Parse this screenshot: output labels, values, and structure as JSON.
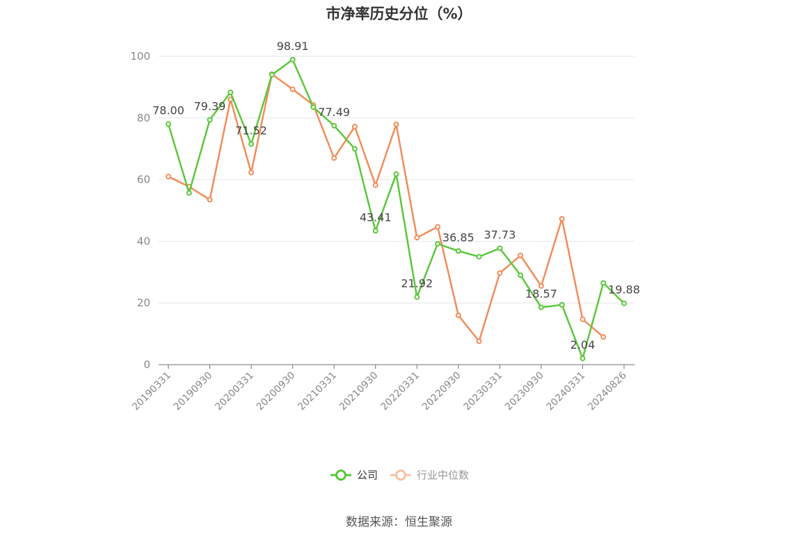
{
  "chart_data": {
    "type": "line",
    "title": "市净率历史分位（%）",
    "x": [
      "20190331",
      "20190630",
      "20190930",
      "20191231",
      "20200331",
      "20200630",
      "20200930",
      "20201231",
      "20210331",
      "20210630",
      "20210930",
      "20211231",
      "20220331",
      "20220630",
      "20220930",
      "20221231",
      "20230331",
      "20230630",
      "20230930",
      "20231231",
      "20240331",
      "20240630",
      "20240826"
    ],
    "x_tick_labels": [
      "20190331",
      "20190930",
      "20200331",
      "20200930",
      "20210331",
      "20210930",
      "20220331",
      "20220930",
      "20230331",
      "20230930",
      "20240331",
      "20240826"
    ],
    "ylim": [
      0,
      100
    ],
    "y_ticks": [
      0,
      20,
      40,
      60,
      80,
      100
    ],
    "grid": true,
    "legend_position": "bottom-center",
    "series": [
      {
        "name": "公司",
        "color": "#5ac73a",
        "values": [
          78.0,
          55.7,
          79.39,
          88.3,
          71.52,
          94.0,
          98.91,
          83.5,
          77.49,
          70.0,
          43.41,
          61.8,
          21.92,
          39.2,
          36.85,
          35.0,
          37.73,
          29.0,
          18.57,
          19.4,
          2.04,
          26.5,
          19.88
        ],
        "data_labels": [
          {
            "index": 0,
            "text": "78.00"
          },
          {
            "index": 2,
            "text": "79.39"
          },
          {
            "index": 4,
            "text": "71.52"
          },
          {
            "index": 6,
            "text": "98.91"
          },
          {
            "index": 8,
            "text": "77.49"
          },
          {
            "index": 10,
            "text": "43.41"
          },
          {
            "index": 12,
            "text": "21.92"
          },
          {
            "index": 14,
            "text": "36.85"
          },
          {
            "index": 16,
            "text": "37.73"
          },
          {
            "index": 18,
            "text": "18.57"
          },
          {
            "index": 20,
            "text": "2.04"
          },
          {
            "index": 22,
            "text": "19.88"
          }
        ]
      },
      {
        "name": "行业中位数",
        "color": "#f28c5a",
        "values": [
          61.0,
          57.7,
          53.5,
          86.0,
          62.3,
          94.2,
          89.3,
          84.2,
          67.0,
          77.2,
          58.2,
          77.9,
          41.2,
          44.7,
          16.0,
          7.6,
          29.7,
          35.4,
          25.5,
          47.3,
          14.7,
          9.0,
          null
        ]
      }
    ],
    "source": "数据来源：恒生聚源"
  }
}
